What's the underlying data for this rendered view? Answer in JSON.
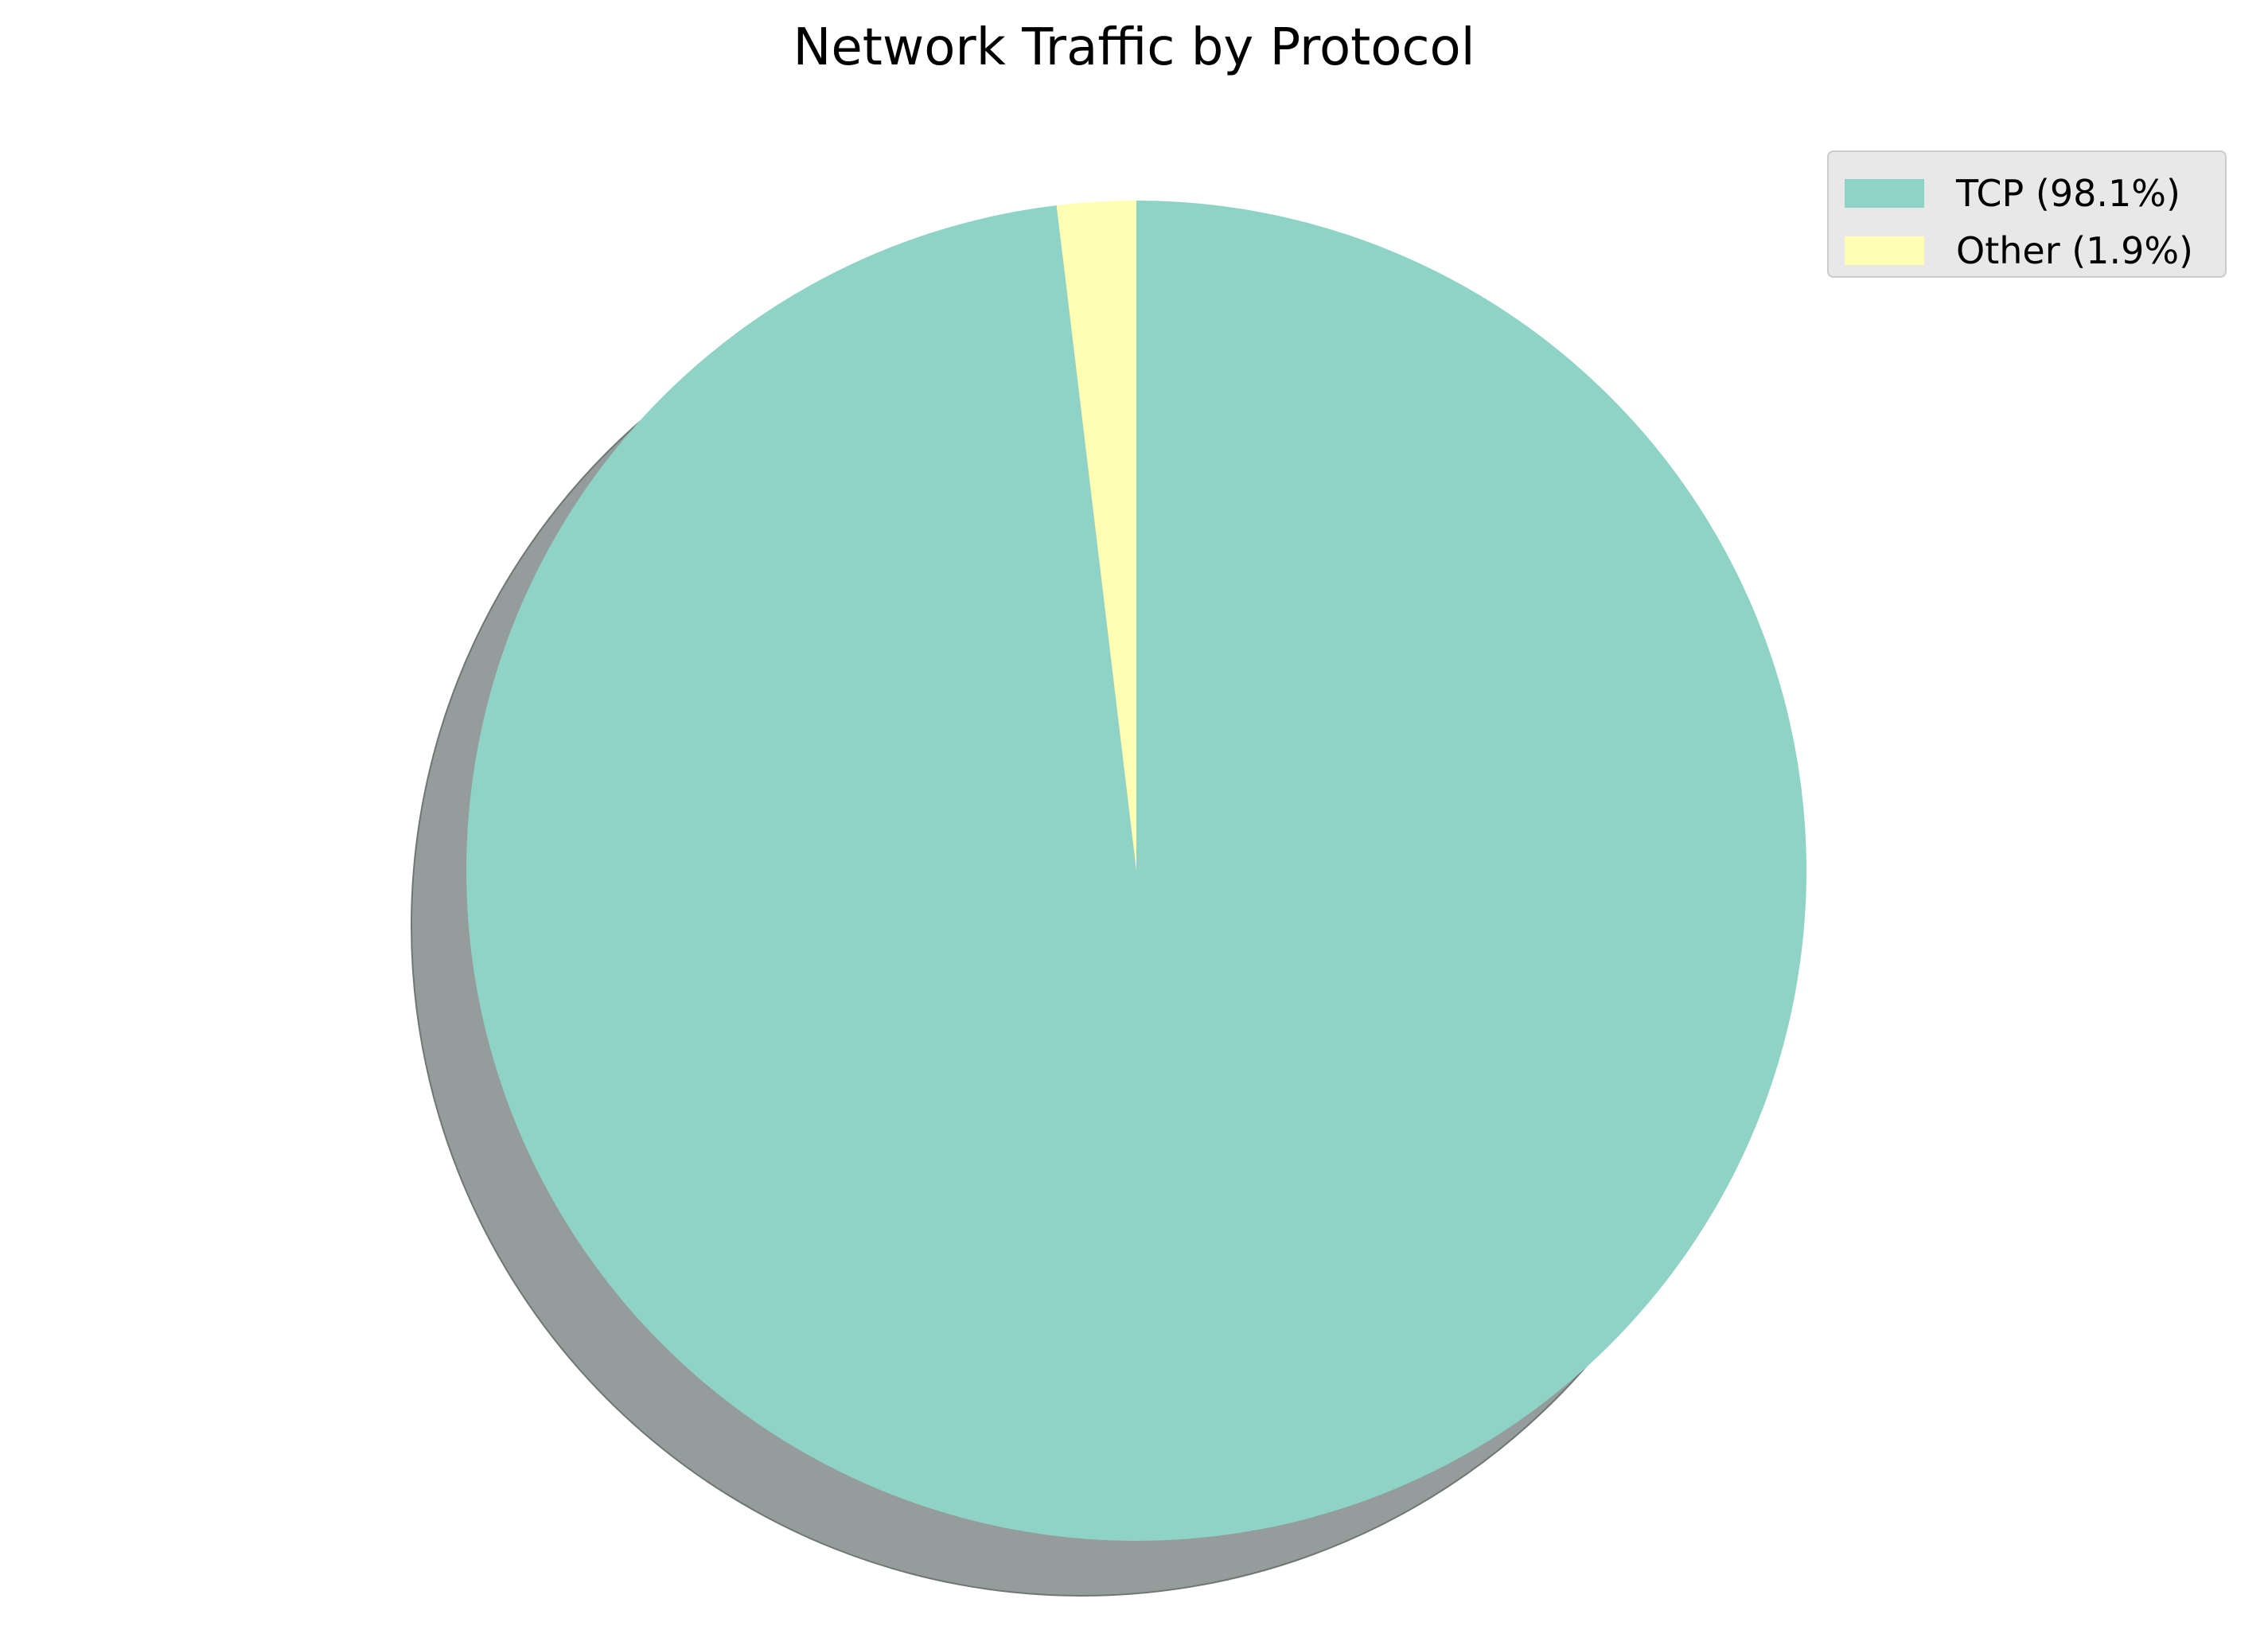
{
  "chart_data": {
    "type": "pie",
    "title": "Network Traffic by Protocol",
    "slices": [
      {
        "label": "TCP",
        "value": 98.1,
        "color": "#8fd3c7"
      },
      {
        "label": "Other",
        "value": 1.9,
        "color": "#ffffb3"
      }
    ],
    "legend": {
      "position": "top-right",
      "entries": [
        "TCP (98.1%)",
        "Other (1.9%)"
      ]
    },
    "start_angle": "top",
    "direction": "clockwise",
    "shadow": true,
    "shadow_color": "#949d9b"
  }
}
